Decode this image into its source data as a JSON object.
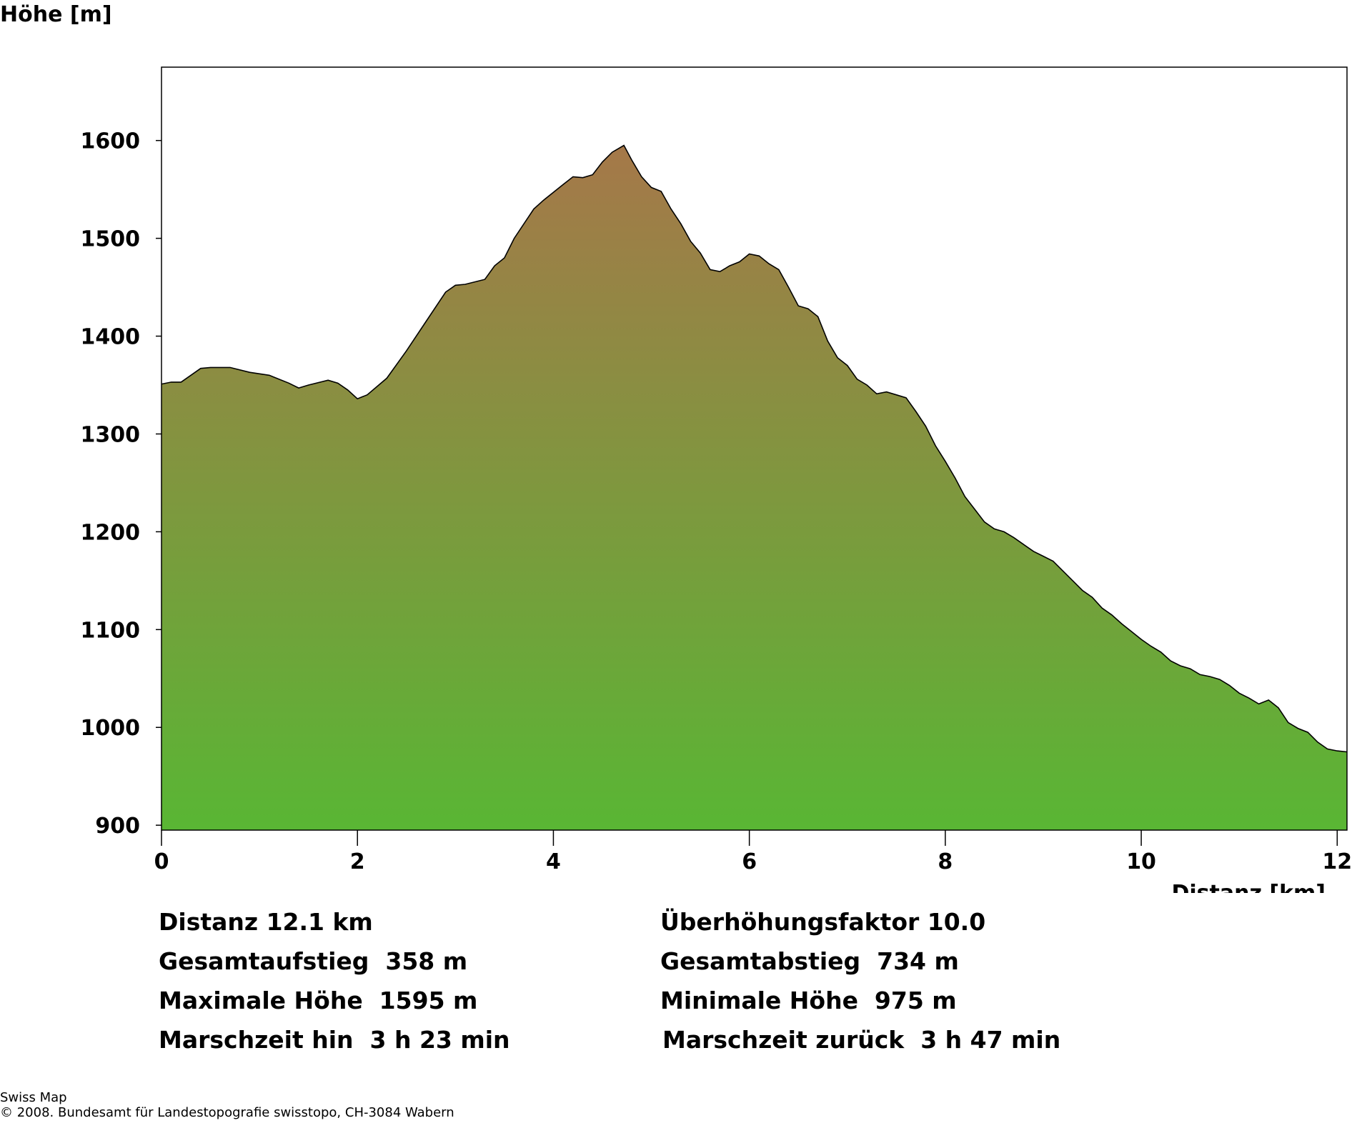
{
  "chart_data": {
    "type": "area",
    "ylabel": "Höhe [m]",
    "xlabel": "Distanz [km]",
    "xlim": [
      0,
      12.1
    ],
    "ylim": [
      895,
      1675
    ],
    "x_ticks": [
      0,
      2,
      4,
      6,
      8,
      10,
      12
    ],
    "y_ticks": [
      900,
      1000,
      1100,
      1200,
      1300,
      1400,
      1500,
      1600
    ],
    "grid": false,
    "colors": {
      "low": "#59B634",
      "high": "#A57849",
      "line": "#000000"
    },
    "series": [
      {
        "name": "Höhenprofil",
        "points": [
          [
            0,
            1351
          ],
          [
            0.1,
            1353
          ],
          [
            0.2,
            1353
          ],
          [
            0.3,
            1360
          ],
          [
            0.4,
            1367
          ],
          [
            0.5,
            1368
          ],
          [
            0.7,
            1368
          ],
          [
            0.9,
            1363
          ],
          [
            1.1,
            1360
          ],
          [
            1.3,
            1352
          ],
          [
            1.4,
            1347
          ],
          [
            1.5,
            1350
          ],
          [
            1.7,
            1355
          ],
          [
            1.8,
            1352
          ],
          [
            1.9,
            1345
          ],
          [
            2.0,
            1336
          ],
          [
            2.1,
            1340
          ],
          [
            2.3,
            1357
          ],
          [
            2.5,
            1385
          ],
          [
            2.7,
            1415
          ],
          [
            2.9,
            1445
          ],
          [
            3.0,
            1452
          ],
          [
            3.1,
            1453
          ],
          [
            3.3,
            1458
          ],
          [
            3.4,
            1472
          ],
          [
            3.5,
            1480
          ],
          [
            3.6,
            1500
          ],
          [
            3.8,
            1530
          ],
          [
            3.9,
            1539
          ],
          [
            4.0,
            1547
          ],
          [
            4.1,
            1555
          ],
          [
            4.2,
            1563
          ],
          [
            4.3,
            1562
          ],
          [
            4.4,
            1565
          ],
          [
            4.5,
            1578
          ],
          [
            4.6,
            1588
          ],
          [
            4.72,
            1595
          ],
          [
            4.8,
            1580
          ],
          [
            4.9,
            1563
          ],
          [
            5.0,
            1552
          ],
          [
            5.1,
            1548
          ],
          [
            5.2,
            1530
          ],
          [
            5.3,
            1515
          ],
          [
            5.4,
            1497
          ],
          [
            5.5,
            1485
          ],
          [
            5.6,
            1468
          ],
          [
            5.7,
            1466
          ],
          [
            5.8,
            1472
          ],
          [
            5.9,
            1476
          ],
          [
            6.0,
            1484
          ],
          [
            6.1,
            1482
          ],
          [
            6.2,
            1474
          ],
          [
            6.3,
            1468
          ],
          [
            6.4,
            1450
          ],
          [
            6.5,
            1431
          ],
          [
            6.6,
            1428
          ],
          [
            6.7,
            1420
          ],
          [
            6.8,
            1395
          ],
          [
            6.9,
            1378
          ],
          [
            7.0,
            1370
          ],
          [
            7.1,
            1356
          ],
          [
            7.2,
            1350
          ],
          [
            7.3,
            1341
          ],
          [
            7.4,
            1343
          ],
          [
            7.5,
            1340
          ],
          [
            7.6,
            1337
          ],
          [
            7.7,
            1323
          ],
          [
            7.8,
            1308
          ],
          [
            7.9,
            1288
          ],
          [
            8.0,
            1272
          ],
          [
            8.1,
            1255
          ],
          [
            8.2,
            1236
          ],
          [
            8.3,
            1223
          ],
          [
            8.4,
            1210
          ],
          [
            8.5,
            1203
          ],
          [
            8.6,
            1200
          ],
          [
            8.7,
            1194
          ],
          [
            8.8,
            1187
          ],
          [
            8.9,
            1180
          ],
          [
            9.0,
            1175
          ],
          [
            9.1,
            1170
          ],
          [
            9.2,
            1160
          ],
          [
            9.3,
            1150
          ],
          [
            9.4,
            1140
          ],
          [
            9.5,
            1133
          ],
          [
            9.6,
            1122
          ],
          [
            9.7,
            1115
          ],
          [
            9.8,
            1106
          ],
          [
            9.9,
            1098
          ],
          [
            10.0,
            1090
          ],
          [
            10.1,
            1083
          ],
          [
            10.2,
            1077
          ],
          [
            10.3,
            1068
          ],
          [
            10.4,
            1063
          ],
          [
            10.5,
            1060
          ],
          [
            10.6,
            1054
          ],
          [
            10.7,
            1052
          ],
          [
            10.8,
            1049
          ],
          [
            10.9,
            1043
          ],
          [
            11.0,
            1035
          ],
          [
            11.1,
            1030
          ],
          [
            11.2,
            1024
          ],
          [
            11.3,
            1028
          ],
          [
            11.4,
            1020
          ],
          [
            11.5,
            1005
          ],
          [
            11.6,
            999
          ],
          [
            11.7,
            995
          ],
          [
            11.8,
            985
          ],
          [
            11.9,
            978
          ],
          [
            12.0,
            976
          ],
          [
            12.1,
            975
          ]
        ]
      }
    ]
  },
  "stats": {
    "distanz": "Distanz 12.1 km",
    "ueberhoehung": "Überhöhungsfaktor 10.0",
    "gesamtaufstieg": "Gesamtaufstieg  358 m",
    "gesamtabstieg": "Gesamtabstieg  734 m",
    "max_hoehe": "Maximale Höhe  1595 m",
    "min_hoehe": "Minimale Höhe  975 m",
    "marschzeit_hin": "Marschzeit hin  3 h 23 min",
    "marschzeit_zurueck": "Marschzeit zurück  3 h 47 min"
  },
  "credits": {
    "source": "Swiss Map",
    "copyright": "© 2008. Bundesamt für Landestopografie swisstopo, CH-3084 Wabern"
  }
}
